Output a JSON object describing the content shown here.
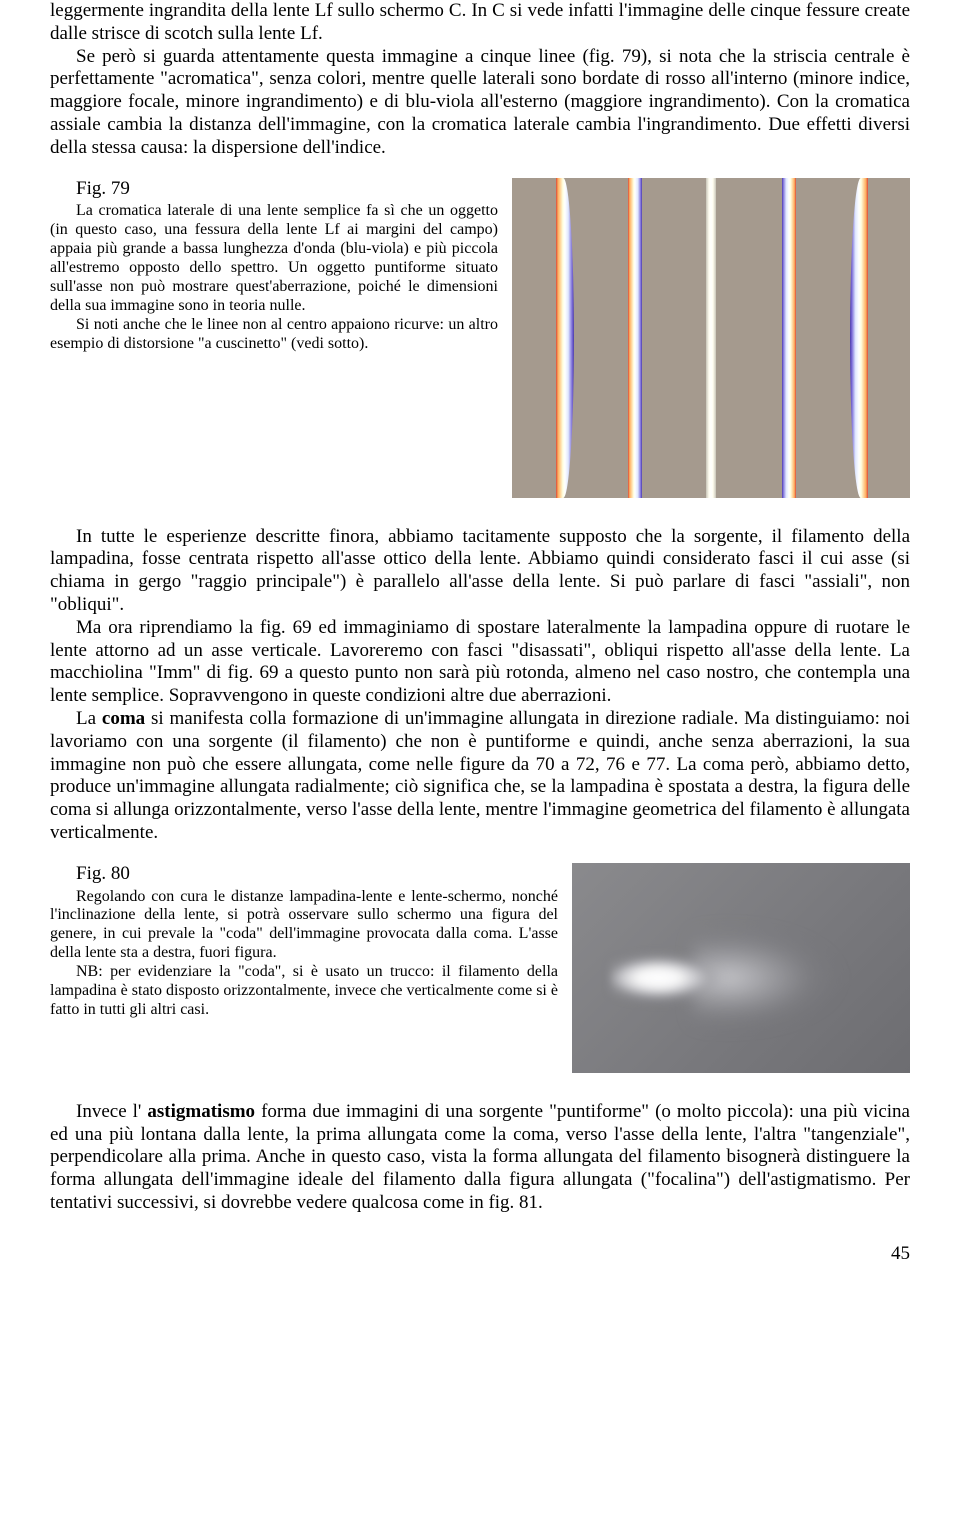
{
  "para1": "leggermente ingrandita della lente  Lf  sullo schermo  C.  In  C  si vede infatti l'immagine delle cinque fessure create dalle strisce di scotch sulla lente  Lf.",
  "para1b": "Se però si guarda attentamente questa immagine a cinque linee (fig. 79), si nota che la striscia centrale è perfettamente \"acromatica\", senza colori, mentre quelle laterali sono bordate di rosso all'interno (minore indice, maggiore focale, minore ingrandimento) e di blu-viola all'esterno (maggiore ingrandimento). Con la cromatica assiale cambia la distanza dell'immagine, con la cromatica laterale cambia l'ingrandimento. Due effetti diversi della stessa causa: la dispersione dell'indice.",
  "fig79": {
    "label": "Fig. 79",
    "caption1": "La cromatica laterale di una lente semplice fa sì che un oggetto (in questo caso, una fessura della lente  Lf  ai margini del campo) appaia più grande a bassa lunghezza d'onda (blu-viola) e più piccola all'estremo opposto dello spettro. Un oggetto puntiforme situato sull'asse non può mostrare quest'aberrazione, poiché le dimensioni della sua immagine sono in teoria nulle.",
    "caption2": "Si noti anche che le linee non al centro appaiono ricurve: un altro esempio di distorsione \"a cuscinetto\" (vedi sotto).",
    "image_colors": {
      "background": "#a59a8e",
      "red_edge": "#d84a3a",
      "orange": "#ffb060",
      "white_center": "#ffffff",
      "blue_edge": "#7a6bd8",
      "violet": "#4a3aa8"
    },
    "stripe_count": 5
  },
  "para2a": "In tutte le esperienze descritte finora, abbiamo tacitamente supposto che la sorgente, il filamento della lampadina, fosse centrata rispetto all'asse ottico della lente. Abbiamo quindi considerato fasci il cui asse (si chiama in gergo \"raggio principale\") è parallelo all'asse della lente. Si può parlare di fasci \"assiali\", non \"obliqui\".",
  "para2b": "Ma ora riprendiamo la fig. 69 ed immaginiamo di spostare lateralmente la lampadina oppure di ruotare le lente attorno ad un asse verticale. Lavoreremo con fasci \"disassati\", obliqui rispetto all'asse della lente. La macchiolina \"Imm\" di fig. 69 a questo punto non sarà più rotonda, almeno nel caso nostro, che contempla una lente semplice. Sopravvengono in queste condizioni altre due aberrazioni.",
  "para2c_pre": "La  ",
  "para2c_bold": "coma",
  "para2c_post": "  si manifesta colla formazione di un'immagine allungata in direzione radiale. Ma distinguiamo: noi lavoriamo con una sorgente (il filamento) che non è puntiforme e quindi, anche senza aberrazioni, la sua immagine non può che essere allungata, come nelle figure da 70 a 72, 76 e 77. La coma però, abbiamo detto, produce un'immagine allungata radialmente; ciò significa che, se la lampadina è spostata a destra, la figura delle coma si allunga orizzontalmente, verso l'asse della lente, mentre l'immagine geometrica del filamento è allungata verticalmente.",
  "fig80": {
    "label": "Fig. 80",
    "caption1": "Regolando con cura le distanze lampadina-lente e lente-schermo, nonché l'inclinazione della lente, si potrà osservare sullo schermo una figura del genere, in cui prevale la \"coda\" dell'immagine provocata dalla coma. L'asse della lente sta a destra, fuori figura.",
    "caption2": "NB: per evidenziare la \"coda\", si è usato un trucco: il filamento della lampadina è stato disposto orizzontalmente, invece che verticalmente come si è fatto in tutti gli altri casi.",
    "image_colors": {
      "background": "#78787c",
      "bright_core": "#ffffff",
      "tail": "#c8c8cc"
    }
  },
  "para3_pre": "Invece l' ",
  "para3_bold": "astigmatismo",
  "para3_post": "  forma due immagini di una sorgente \"puntiforme\" (o molto piccola): una più vicina ed una più lontana dalla lente, la prima allungata come la coma, verso l'asse della lente, l'altra \"tangenziale\", perpendicolare alla prima. Anche in questo caso, vista la forma allungata del filamento bisognerà distinguere la forma allungata dell'immagine ideale del filamento dalla figura allungata (\"focalina\") dell'astigmatismo. Per tentativi successivi, si dovrebbe vedere qualcosa come in fig. 81.",
  "page_number": "45"
}
